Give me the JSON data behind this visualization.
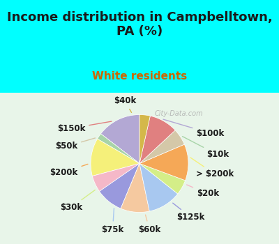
{
  "title": "Income distribution in Campbelltown,\nPA (%)",
  "subtitle": "White residents",
  "title_color": "#1a1a1a",
  "subtitle_color": "#cc6600",
  "background_top": "#00ffff",
  "background_chart": "#e8f5e9",
  "watermark": "City-Data.com",
  "labels": [
    "$100k",
    "$10k",
    "> $200k",
    "$20k",
    "$125k",
    "$60k",
    "$75k",
    "$30k",
    "$200k",
    "$50k",
    "$150k",
    "$40k"
  ],
  "sizes": [
    14.5,
    2.0,
    12.5,
    5.5,
    9.0,
    9.5,
    11.0,
    5.0,
    12.0,
    5.5,
    9.5,
    3.5
  ],
  "colors": [
    "#b3a8d4",
    "#a8d4a8",
    "#f5f07a",
    "#f5b8c8",
    "#9999dd",
    "#f5c9a0",
    "#a8c8f0",
    "#d4ee88",
    "#f5a857",
    "#d4c8a8",
    "#e08080",
    "#d4b84a"
  ],
  "startangle": 90,
  "label_fontsize": 8.5,
  "title_fontsize": 13,
  "subtitle_fontsize": 11
}
